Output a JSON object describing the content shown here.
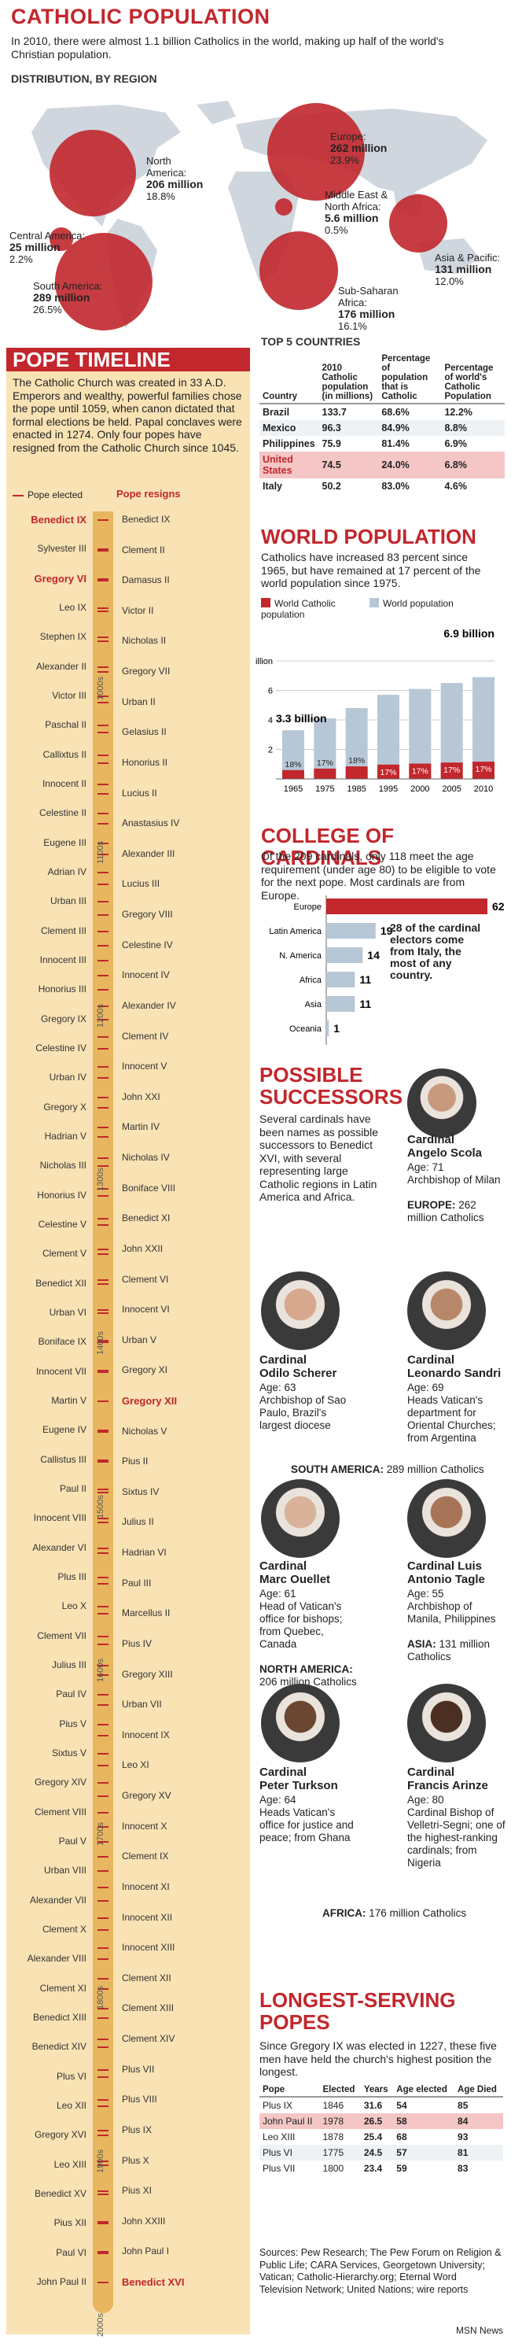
{
  "title": "CATHOLIC POPULATION",
  "intro": "In 2010, there were almost 1.1 billion Catholics in the world, making up half of the world's Christian population.",
  "distribution": {
    "heading": "DISTRIBUTION, BY REGION",
    "regions": [
      {
        "name": "North America:",
        "value": "206 million",
        "pct": "18.8%"
      },
      {
        "name": "Europe:",
        "value": "262 million",
        "pct": "23.9%"
      },
      {
        "name": "Middle East & North Africa:",
        "value": "5.6 million",
        "pct": "0.5%"
      },
      {
        "name": "Central America:",
        "value": "25 million",
        "pct": "2.2%"
      },
      {
        "name": "Asia & Pacific:",
        "value": "131 million",
        "pct": "12.0%"
      },
      {
        "name": "South America:",
        "value": "289 million",
        "pct": "26.5%"
      },
      {
        "name": "Sub-Saharan Africa:",
        "value": "176 million",
        "pct": "16.1%"
      }
    ]
  },
  "pope_timeline": {
    "title": "POPE TIMELINE",
    "text": "The Catholic Church was created in 33 A.D. Emperors and wealthy, powerful families chose the pope until 1059, when canon dictated that formal elections be held. Papal conclaves were enacted in 1274. Only four popes have resigned from the Catholic Church since 1045.",
    "legend_elected": "Pope elected",
    "legend_resigns": "Pope resigns",
    "centuries": [
      "1000s",
      "1100s",
      "1200s",
      "1300s",
      "1400s",
      "1500s",
      "1600s",
      "1700s",
      "1800s",
      "1900s",
      "2000s"
    ],
    "left": [
      "Benedict IX",
      "Sylvester III",
      "Gregory VI",
      "Leo IX",
      "Stephen IX",
      "Alexander II",
      "Victor III",
      "Paschal II",
      "Callixtus II",
      "Innocent II",
      "Celestine II",
      "Eugene III",
      "Adrian IV",
      "Urban III",
      "Clement III",
      "Innocent III",
      "Honorius III",
      "Gregory IX",
      "Celestine IV",
      "Urban IV",
      "Gregory X",
      "Hadrian V",
      "Nicholas III",
      "Honorius IV",
      "Celestine V",
      "Clement V",
      "Benedict XII",
      "Urban VI",
      "Boniface IX",
      "Innocent VII",
      "Martin V",
      "Eugene IV",
      "Callistus III",
      "Paul II",
      "Innocent VIII",
      "Alexander VI",
      "Plus III",
      "Leo X",
      "Clement VII",
      "Julius III",
      "Paul IV",
      "Pius V",
      "Sixtus V",
      "Gregory XIV",
      "Clement VIII",
      "Paul V",
      "Urban VIII",
      "Alexander VII",
      "Clement X",
      "Alexander VIII",
      "Clement XI",
      "Benedict XIII",
      "Benedict XIV",
      "Plus VI",
      "Leo XII",
      "Gregory XVI",
      "Leo XIII",
      "Benedict XV",
      "Pius XII",
      "Paul VI",
      "John Paul II"
    ],
    "right": [
      "Benedict IX",
      "Clement II",
      "Damasus II",
      "Victor II",
      "Nicholas II",
      "Gregory VII",
      "Urban II",
      "Gelasius II",
      "Honorius II",
      "Lucius II",
      "Anastasius IV",
      "Alexander III",
      "Lucius III",
      "Gregory VIII",
      "Celestine IV",
      "Innocent IV",
      "Alexander IV",
      "Clement IV",
      "Innocent V",
      "John XXI",
      "Martin IV",
      "Nicholas IV",
      "Boniface VIII",
      "Benedict XI",
      "John XXII",
      "Clement VI",
      "Innocent VI",
      "Urban V",
      "Gregory XI",
      "Gregory XII",
      "Nicholas V",
      "Pius II",
      "Sixtus IV",
      "Julius II",
      "Hadrian VI",
      "Paul III",
      "Marcellus II",
      "Pius IV",
      "Gregory XIII",
      "Urban VII",
      "Innocent IX",
      "Leo XI",
      "Gregory XV",
      "Innocent X",
      "Clement IX",
      "Innocent XI",
      "Innocent XII",
      "Innocent XIII",
      "Clement XII",
      "Clement XIII",
      "Clement XIV",
      "Plus VII",
      "Plus VIII",
      "Plus IX",
      "Plus X",
      "Pius XI",
      "John XXIII",
      "John Paul I",
      "Benedict XVI"
    ]
  },
  "top5": {
    "heading": "TOP 5 COUNTRIES",
    "columns": [
      "Country",
      "2010 Catholic population (in millions)",
      "Percentage of population that is Catholic",
      "Percentage of world's Catholic Population"
    ],
    "rows": [
      [
        "Brazil",
        "133.7",
        "68.6%",
        "12.2%"
      ],
      [
        "Mexico",
        "96.3",
        "84.9%",
        "8.8%"
      ],
      [
        "Philippines",
        "75.9",
        "81.4%",
        "6.9%"
      ],
      [
        "United States",
        "74.5",
        "24.0%",
        "6.8%"
      ],
      [
        "Italy",
        "50.2",
        "83.0%",
        "4.6%"
      ]
    ]
  },
  "world_pop": {
    "title": "WORLD POPULATION",
    "text": "Catholics have increased 83 percent since 1965, but have remained at 17 percent of the world population since 1975.",
    "legend_catholic": "World Catholic population",
    "legend_world": "World population",
    "label_start": "3.3 billion",
    "label_end": "6.9 billion"
  },
  "cardinals": {
    "title": "COLLEGE OF CARDINALS",
    "text": "Of the 209 cardinals, only 118 meet the age requirement (under age 80) to be eligible to vote for the next pope. Most cardinals are from Europe.",
    "note": "28 of the cardinal electors come from Italy, the most of any country."
  },
  "successors": {
    "title": "POSSIBLE SUCCESSORS",
    "text": "Several cardinals have been names as possible successors to Benedict XVI, with several representing large Catholic regions in Latin America and Africa.",
    "people": [
      {
        "title": "Cardinal",
        "name": "Angelo Scola",
        "age": "Age: 71",
        "desc": "Archbishop of Milan"
      },
      {
        "title": "Cardinal",
        "name": "Odilo Scherer",
        "age": "Age: 63",
        "desc": "Archbishop of Sao Paulo, Brazil's largest diocese"
      },
      {
        "title": "Cardinal",
        "name": "Leonardo Sandri",
        "age": "Age: 69",
        "desc": "Heads Vatican's department for Oriental Churches; from Argentina"
      },
      {
        "title": "Cardinal",
        "name": "Marc Ouellet",
        "age": "Age: 61",
        "desc": "Head of Vatican's office for bishops; from Quebec, Canada"
      },
      {
        "title": "Cardinal Luis",
        "name": "Antonio Tagle",
        "age": "Age: 55",
        "desc": "Archbishop of Manila, Philippines"
      },
      {
        "title": "Cardinal",
        "name": "Peter Turkson",
        "age": "Age: 64",
        "desc": "Heads Vatican's office for justice and peace; from Ghana"
      },
      {
        "title": "Cardinal",
        "name": "Francis Arinze",
        "age": "Age: 80",
        "desc": "Cardinal Bishop of Velletri-Segni; one of the highest-ranking cardinals; from Nigeria"
      }
    ],
    "regions": [
      {
        "label": "EUROPE:",
        "text": "262 million Catholics"
      },
      {
        "label": "SOUTH AMERICA:",
        "text": "289 million Catholics"
      },
      {
        "label": "NORTH AMERICA:",
        "text": "206 million Catholics"
      },
      {
        "label": "ASIA:",
        "text": "131 million Catholics"
      },
      {
        "label": "AFRICA:",
        "text": "176 million Catholics"
      }
    ]
  },
  "longest": {
    "title": "LONGEST-SERVING POPES",
    "text": "Since Gregory IX was elected in 1227, these five men have held the church's highest position the longest.",
    "columns": [
      "Pope",
      "Elected",
      "Years",
      "Age elected",
      "Age Died"
    ],
    "rows": [
      [
        "Plus IX",
        "1846",
        "31.6",
        "54",
        "85"
      ],
      [
        "John Paul II",
        "1978",
        "26.5",
        "58",
        "84"
      ],
      [
        "Leo XIII",
        "1878",
        "25.4",
        "68",
        "93"
      ],
      [
        "Plus VI",
        "1775",
        "24.5",
        "57",
        "81"
      ],
      [
        "Plus VII",
        "1800",
        "23.4",
        "59",
        "83"
      ]
    ]
  },
  "sources": "Sources: Pew Research; The Pew Forum on Religion & Public Life; CARA Services, Georgetown University; Vatican; Catholic-Hierarchy.org; Eternal Word Television Network; United Nations; wire reports",
  "credit": "MSN News",
  "chart_data": [
    {
      "type": "bar",
      "title": "WORLD POPULATION",
      "categories": [
        "1965",
        "1975",
        "1985",
        "1995",
        "2005",
        "2005b",
        "2010"
      ],
      "x": [
        "1965",
        "1975",
        "1985",
        "1995",
        "2000",
        "2005",
        "2010"
      ],
      "series": [
        {
          "name": "World population",
          "values": [
            3.3,
            4.1,
            4.8,
            5.7,
            6.1,
            6.5,
            6.9
          ]
        },
        {
          "name": "World Catholic population",
          "values": [
            0.6,
            0.7,
            0.85,
            0.97,
            1.04,
            1.11,
            1.17
          ]
        }
      ],
      "data_labels": [
        "18%",
        "17%",
        "18%",
        "17%",
        "17%",
        "17%",
        "17%"
      ],
      "y_ticks": [
        "2",
        "4",
        "6",
        "8 billion"
      ],
      "ylim": [
        0,
        8
      ],
      "colors": {
        "catholic": "#c1272d",
        "world": "#b7c7d6"
      }
    },
    {
      "type": "bar",
      "title": "COLLEGE OF CARDINALS",
      "orientation": "horizontal",
      "categories": [
        "Europe",
        "Latin America",
        "N. America",
        "Africa",
        "Asia",
        "Oceania"
      ],
      "values": [
        62,
        19,
        14,
        11,
        11,
        1
      ],
      "colors": {
        "highlight": "#c1272d",
        "other": "#b7c7d6"
      }
    }
  ]
}
